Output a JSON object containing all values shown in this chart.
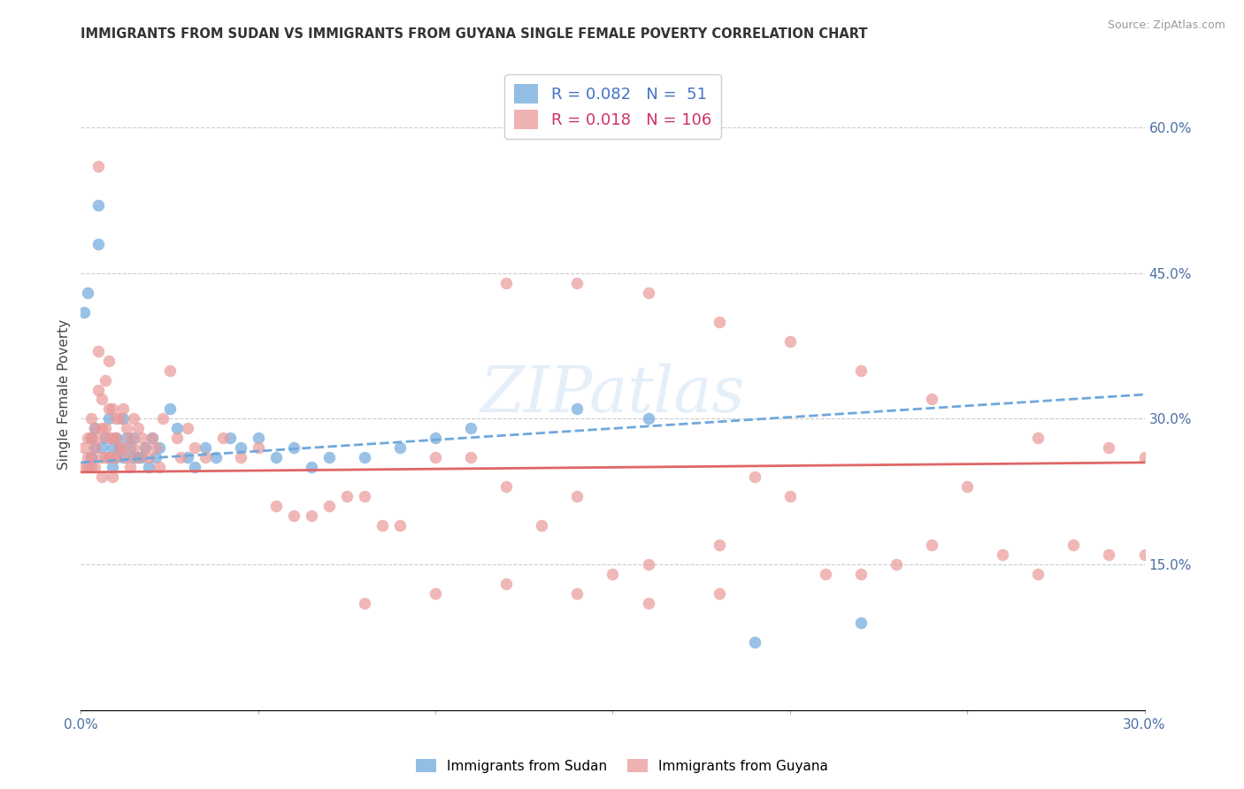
{
  "title": "IMMIGRANTS FROM SUDAN VS IMMIGRANTS FROM GUYANA SINGLE FEMALE POVERTY CORRELATION CHART",
  "source": "Source: ZipAtlas.com",
  "ylabel": "Single Female Poverty",
  "right_yticks": [
    60.0,
    45.0,
    30.0,
    15.0
  ],
  "xlim": [
    0.0,
    0.3
  ],
  "ylim": [
    0.0,
    0.65
  ],
  "legend_sudan_R": "0.082",
  "legend_sudan_N": "51",
  "legend_guyana_R": "0.018",
  "legend_guyana_N": "106",
  "color_sudan": "#6fa8dc",
  "color_guyana": "#ea9999",
  "color_trend_sudan": "#6fa8dc",
  "color_trend_guyana": "#e06666",
  "watermark": "ZIPatlas",
  "sudan_x": [
    0.001,
    0.002,
    0.003,
    0.003,
    0.004,
    0.004,
    0.005,
    0.005,
    0.006,
    0.007,
    0.008,
    0.008,
    0.009,
    0.009,
    0.01,
    0.01,
    0.011,
    0.012,
    0.012,
    0.013,
    0.014,
    0.015,
    0.015,
    0.016,
    0.017,
    0.018,
    0.019,
    0.02,
    0.021,
    0.022,
    0.025,
    0.027,
    0.03,
    0.032,
    0.035,
    0.038,
    0.042,
    0.045,
    0.05,
    0.055,
    0.06,
    0.065,
    0.07,
    0.08,
    0.09,
    0.1,
    0.11,
    0.14,
    0.16,
    0.19,
    0.22
  ],
  "sudan_y": [
    0.41,
    0.43,
    0.28,
    0.26,
    0.29,
    0.27,
    0.52,
    0.48,
    0.27,
    0.28,
    0.3,
    0.26,
    0.27,
    0.25,
    0.28,
    0.26,
    0.27,
    0.3,
    0.26,
    0.28,
    0.27,
    0.28,
    0.26,
    0.26,
    0.26,
    0.27,
    0.25,
    0.28,
    0.26,
    0.27,
    0.31,
    0.29,
    0.26,
    0.25,
    0.27,
    0.26,
    0.28,
    0.27,
    0.28,
    0.26,
    0.27,
    0.25,
    0.26,
    0.26,
    0.27,
    0.28,
    0.29,
    0.31,
    0.3,
    0.07,
    0.09
  ],
  "guyana_x": [
    0.001,
    0.001,
    0.002,
    0.002,
    0.002,
    0.003,
    0.003,
    0.003,
    0.003,
    0.004,
    0.004,
    0.004,
    0.005,
    0.005,
    0.005,
    0.005,
    0.006,
    0.006,
    0.006,
    0.006,
    0.007,
    0.007,
    0.007,
    0.008,
    0.008,
    0.008,
    0.008,
    0.009,
    0.009,
    0.009,
    0.009,
    0.01,
    0.01,
    0.01,
    0.011,
    0.011,
    0.012,
    0.012,
    0.013,
    0.013,
    0.014,
    0.014,
    0.015,
    0.015,
    0.016,
    0.016,
    0.017,
    0.018,
    0.019,
    0.02,
    0.021,
    0.022,
    0.023,
    0.025,
    0.027,
    0.028,
    0.03,
    0.032,
    0.035,
    0.04,
    0.045,
    0.05,
    0.055,
    0.06,
    0.065,
    0.07,
    0.075,
    0.08,
    0.085,
    0.09,
    0.1,
    0.11,
    0.12,
    0.13,
    0.14,
    0.15,
    0.16,
    0.18,
    0.19,
    0.2,
    0.21,
    0.22,
    0.23,
    0.24,
    0.25,
    0.26,
    0.27,
    0.28,
    0.29,
    0.3,
    0.12,
    0.14,
    0.16,
    0.18,
    0.2,
    0.22,
    0.24,
    0.27,
    0.29,
    0.3,
    0.08,
    0.1,
    0.12,
    0.14,
    0.16,
    0.18
  ],
  "guyana_y": [
    0.27,
    0.25,
    0.28,
    0.26,
    0.25,
    0.3,
    0.28,
    0.26,
    0.25,
    0.29,
    0.27,
    0.25,
    0.56,
    0.37,
    0.33,
    0.28,
    0.32,
    0.29,
    0.26,
    0.24,
    0.34,
    0.29,
    0.26,
    0.36,
    0.31,
    0.28,
    0.26,
    0.31,
    0.28,
    0.26,
    0.24,
    0.3,
    0.28,
    0.26,
    0.3,
    0.27,
    0.31,
    0.27,
    0.29,
    0.26,
    0.28,
    0.25,
    0.3,
    0.27,
    0.29,
    0.26,
    0.28,
    0.27,
    0.26,
    0.28,
    0.27,
    0.25,
    0.3,
    0.35,
    0.28,
    0.26,
    0.29,
    0.27,
    0.26,
    0.28,
    0.26,
    0.27,
    0.21,
    0.2,
    0.2,
    0.21,
    0.22,
    0.22,
    0.19,
    0.19,
    0.26,
    0.26,
    0.23,
    0.19,
    0.22,
    0.14,
    0.15,
    0.17,
    0.24,
    0.22,
    0.14,
    0.14,
    0.15,
    0.17,
    0.23,
    0.16,
    0.14,
    0.17,
    0.16,
    0.16,
    0.44,
    0.44,
    0.43,
    0.4,
    0.38,
    0.35,
    0.32,
    0.28,
    0.27,
    0.26,
    0.11,
    0.12,
    0.13,
    0.12,
    0.11,
    0.12
  ]
}
